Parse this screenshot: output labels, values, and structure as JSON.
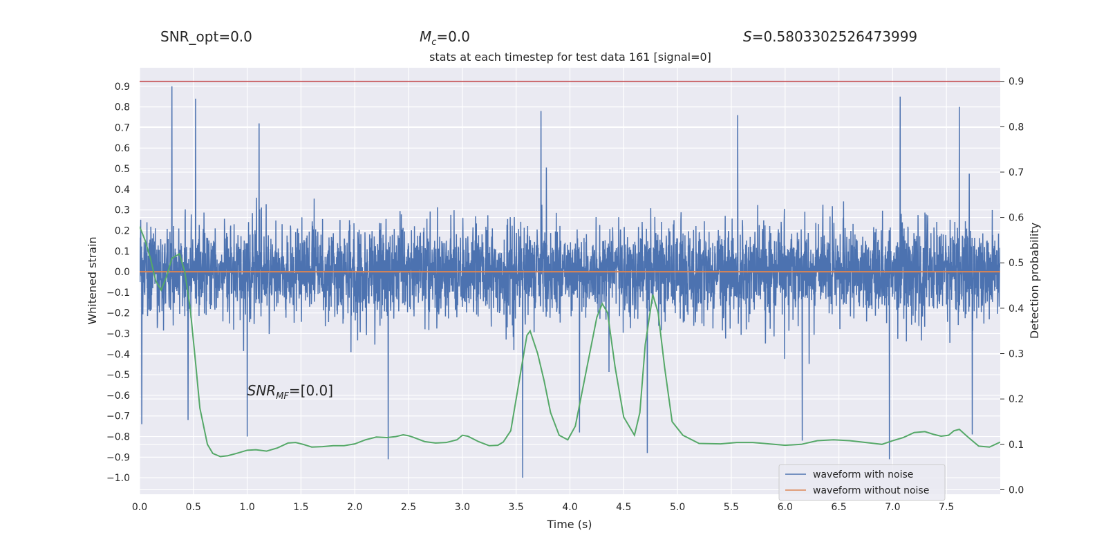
{
  "chart_data": {
    "type": "line",
    "title": "stats at each timestep for test data 161 [signal=0]",
    "header_stats": {
      "snr_opt": "SNR_opt=0.0",
      "mc_symbol": "M",
      "mc_sub": "c",
      "mc_value": "=0.0",
      "s_symbol": "S",
      "s_value": "=0.5803302526473999"
    },
    "annotation": {
      "symbol": "SNR",
      "sub": "MF",
      "value": "=[0.0]",
      "x": 1.0,
      "y": -0.6
    },
    "xlabel": "Time (s)",
    "ylabel_left": "Whitened strain",
    "ylabel_right": "Detection probability",
    "xlim": [
      0.0,
      8.0
    ],
    "ylim_left": [
      -1.08,
      0.99
    ],
    "ylim_right": [
      -0.01,
      0.93
    ],
    "x_ticks": [
      "0.0",
      "0.5",
      "1.0",
      "1.5",
      "2.0",
      "2.5",
      "3.0",
      "3.5",
      "4.0",
      "4.5",
      "5.0",
      "5.5",
      "6.0",
      "6.5",
      "7.0",
      "7.5"
    ],
    "y_ticks_left": [
      "0.9",
      "0.8",
      "0.7",
      "0.6",
      "0.5",
      "0.4",
      "0.3",
      "0.2",
      "0.1",
      "0.0",
      "-0.1",
      "-0.2",
      "-0.3",
      "-0.4",
      "-0.5",
      "-0.6",
      "-0.7",
      "-0.8",
      "-0.9",
      "-1.0"
    ],
    "y_ticks_right": [
      "0.9",
      "0.8",
      "0.7",
      "0.6",
      "0.5",
      "0.4",
      "0.3",
      "0.2",
      "0.1",
      "0.0"
    ],
    "grid": true,
    "legend_position": "bottom-right",
    "legend": [
      {
        "name": "waveform with noise",
        "color": "#4c72b0"
      },
      {
        "name": "waveform without noise",
        "color": "#dd8452"
      }
    ],
    "threshold_line": {
      "y": 0.9,
      "color": "#c44e52"
    },
    "series": [
      {
        "name": "waveform with noise",
        "color": "#4c72b0",
        "axis": "left",
        "envelope_peaks": [
          {
            "x": 0.02,
            "y": -0.74
          },
          {
            "x": 0.3,
            "y": 0.9
          },
          {
            "x": 0.52,
            "y": 0.84
          },
          {
            "x": 0.45,
            "y": -0.72
          },
          {
            "x": 1.0,
            "y": -0.8
          },
          {
            "x": 1.11,
            "y": 0.72
          },
          {
            "x": 2.31,
            "y": -0.91
          },
          {
            "x": 3.56,
            "y": -1.0
          },
          {
            "x": 3.73,
            "y": 0.78
          },
          {
            "x": 4.09,
            "y": -0.78
          },
          {
            "x": 4.72,
            "y": -0.88
          },
          {
            "x": 5.56,
            "y": 0.76
          },
          {
            "x": 6.16,
            "y": -0.82
          },
          {
            "x": 6.97,
            "y": -0.91
          },
          {
            "x": 7.07,
            "y": 0.85
          },
          {
            "x": 7.62,
            "y": 0.8
          },
          {
            "x": 7.74,
            "y": -0.79
          }
        ]
      },
      {
        "name": "waveform without noise",
        "color": "#dd8452",
        "axis": "left",
        "x": [
          0.0,
          8.0
        ],
        "y": [
          0.0,
          0.0
        ]
      },
      {
        "name": "",
        "color": "#55a868",
        "axis": "right",
        "x": [
          0.0,
          0.05,
          0.1,
          0.15,
          0.2,
          0.25,
          0.3,
          0.37,
          0.42,
          0.47,
          0.52,
          0.56,
          0.63,
          0.68,
          0.75,
          0.82,
          0.9,
          1.0,
          1.08,
          1.18,
          1.28,
          1.38,
          1.45,
          1.52,
          1.6,
          1.7,
          1.8,
          1.9,
          2.0,
          2.1,
          2.2,
          2.3,
          2.38,
          2.45,
          2.5,
          2.55,
          2.65,
          2.75,
          2.85,
          2.95,
          3.0,
          3.05,
          3.15,
          3.25,
          3.33,
          3.38,
          3.45,
          3.5,
          3.55,
          3.6,
          3.63,
          3.7,
          3.76,
          3.82,
          3.9,
          3.98,
          4.05,
          4.15,
          4.25,
          4.3,
          4.35,
          4.42,
          4.5,
          4.6,
          4.65,
          4.7,
          4.77,
          4.82,
          4.88,
          4.95,
          5.05,
          5.2,
          5.4,
          5.55,
          5.7,
          5.85,
          6.0,
          6.15,
          6.3,
          6.45,
          6.6,
          6.75,
          6.9,
          7.0,
          7.1,
          7.2,
          7.3,
          7.38,
          7.45,
          7.52,
          7.57,
          7.62,
          7.7,
          7.8,
          7.9,
          8.0
        ],
        "y": [
          0.58,
          0.55,
          0.51,
          0.46,
          0.44,
          0.47,
          0.51,
          0.52,
          0.48,
          0.4,
          0.28,
          0.18,
          0.1,
          0.08,
          0.073,
          0.075,
          0.08,
          0.087,
          0.088,
          0.085,
          0.092,
          0.103,
          0.104,
          0.1,
          0.094,
          0.095,
          0.097,
          0.097,
          0.101,
          0.11,
          0.116,
          0.115,
          0.117,
          0.121,
          0.119,
          0.115,
          0.106,
          0.103,
          0.104,
          0.11,
          0.12,
          0.118,
          0.106,
          0.097,
          0.098,
          0.105,
          0.13,
          0.2,
          0.27,
          0.34,
          0.35,
          0.3,
          0.24,
          0.17,
          0.12,
          0.11,
          0.14,
          0.26,
          0.38,
          0.41,
          0.39,
          0.27,
          0.16,
          0.12,
          0.17,
          0.32,
          0.43,
          0.39,
          0.27,
          0.15,
          0.12,
          0.102,
          0.101,
          0.104,
          0.104,
          0.101,
          0.098,
          0.1,
          0.108,
          0.11,
          0.108,
          0.104,
          0.1,
          0.108,
          0.115,
          0.126,
          0.128,
          0.122,
          0.118,
          0.12,
          0.13,
          0.133,
          0.116,
          0.096,
          0.094,
          0.105
        ]
      }
    ]
  }
}
